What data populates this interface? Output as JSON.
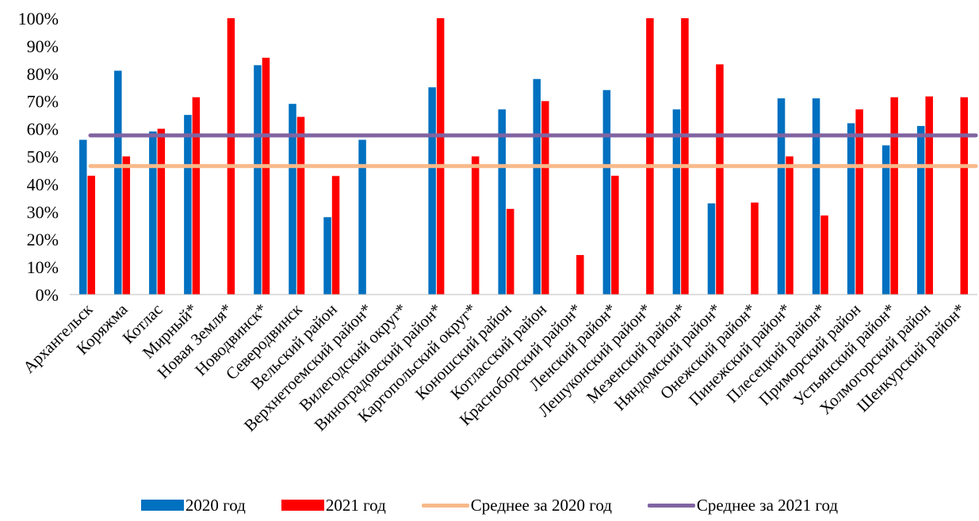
{
  "chart_data": {
    "type": "bar",
    "title": "",
    "xlabel": "",
    "ylabel": "",
    "ylim": [
      0,
      100
    ],
    "y_ticks": [
      "0%",
      "10%",
      "20%",
      "30%",
      "40%",
      "50%",
      "60%",
      "70%",
      "80%",
      "90%",
      "100%"
    ],
    "grid": false,
    "legend_position": "bottom",
    "categories": [
      "Архангельск",
      "Коряжма",
      "Котлас",
      "Мирный*",
      "Новая Земля*",
      "Новодвинск*",
      "Северодвинск",
      "Вельский район",
      "Верхнетоемский район*",
      "Вилегодский округ*",
      "Виноградовский район*",
      "Каргопольский округ*",
      "Коношский район",
      "Котласский район",
      "Красноборский район*",
      "Ленский район*",
      "Лешуконский район*",
      "Мезенский район*",
      "Няндомский район*",
      "Онежский район*",
      "Пинежский район*",
      "Плесецкий район*",
      "Приморский район",
      "Устьянский район*",
      "Холмогорский район",
      "Шенкурский район*"
    ],
    "series": [
      {
        "name": "2020 год",
        "color": "#0070C0",
        "values": [
          56,
          81,
          59,
          65,
          0,
          83,
          69,
          28,
          56,
          0,
          75,
          0,
          67,
          78,
          0,
          74,
          0,
          67,
          33,
          0,
          71,
          71,
          62,
          54,
          61,
          0
        ]
      },
      {
        "name": "2021 год",
        "color": "#FF0000",
        "values": [
          43,
          50,
          60,
          71.4,
          100,
          85.7,
          64.3,
          42.9,
          0,
          0,
          100,
          50,
          31,
          70,
          14.3,
          43,
          100,
          100,
          83.3,
          33.3,
          50,
          28.6,
          67,
          71.4,
          71.7,
          71.4
        ]
      }
    ],
    "reference_lines": [
      {
        "name": "Среднее за 2020 год",
        "color": "#F8B98A",
        "value": 46.5
      },
      {
        "name": "Среднее за 2021 год",
        "color": "#8064A2",
        "value": 57.6
      }
    ]
  }
}
